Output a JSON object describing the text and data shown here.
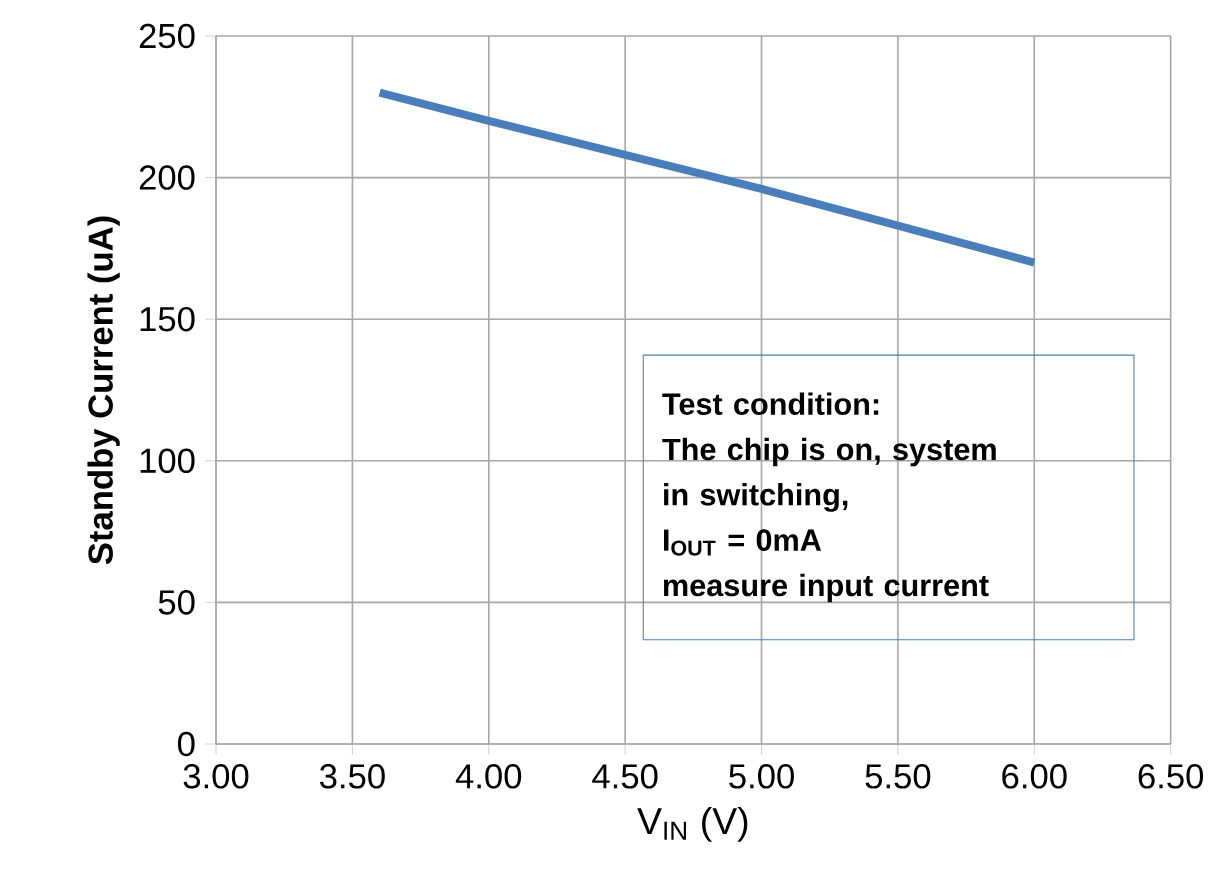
{
  "chart_data": {
    "type": "line",
    "xlabel": "V$_{IN}$ (V)",
    "ylabel": "Standby Current (uA)",
    "x": [
      3.6,
      4.0,
      4.5,
      5.0,
      5.5,
      6.0
    ],
    "series": [
      {
        "color": "#4a7ebb",
        "values": [
          230,
          220,
          208,
          196,
          183,
          170
        ]
      }
    ],
    "xlim": [
      3,
      6.5
    ],
    "ylim": [
      0,
      250
    ],
    "xticks": [
      {
        "value": 3,
        "label": "3.00"
      },
      {
        "value": 3.5,
        "label": "3.50"
      },
      {
        "value": 4,
        "label": "4.00"
      },
      {
        "value": 4.5,
        "label": "4.50"
      },
      {
        "value": 5,
        "label": "5.00"
      },
      {
        "value": 5.5,
        "label": "5.50"
      },
      {
        "value": 6,
        "label": "6.00"
      },
      {
        "value": 6.5,
        "label": "6.50"
      }
    ],
    "yticks": [
      0,
      50,
      100,
      150,
      200,
      250
    ],
    "grid": true,
    "legend": false,
    "marker": "none",
    "line_style": "solid",
    "annotations": [
      "Test condition:",
      "The chip is on, system",
      "in switching,",
      "I$_{OUT}$ = 0mA",
      "measure input current"
    ]
  }
}
